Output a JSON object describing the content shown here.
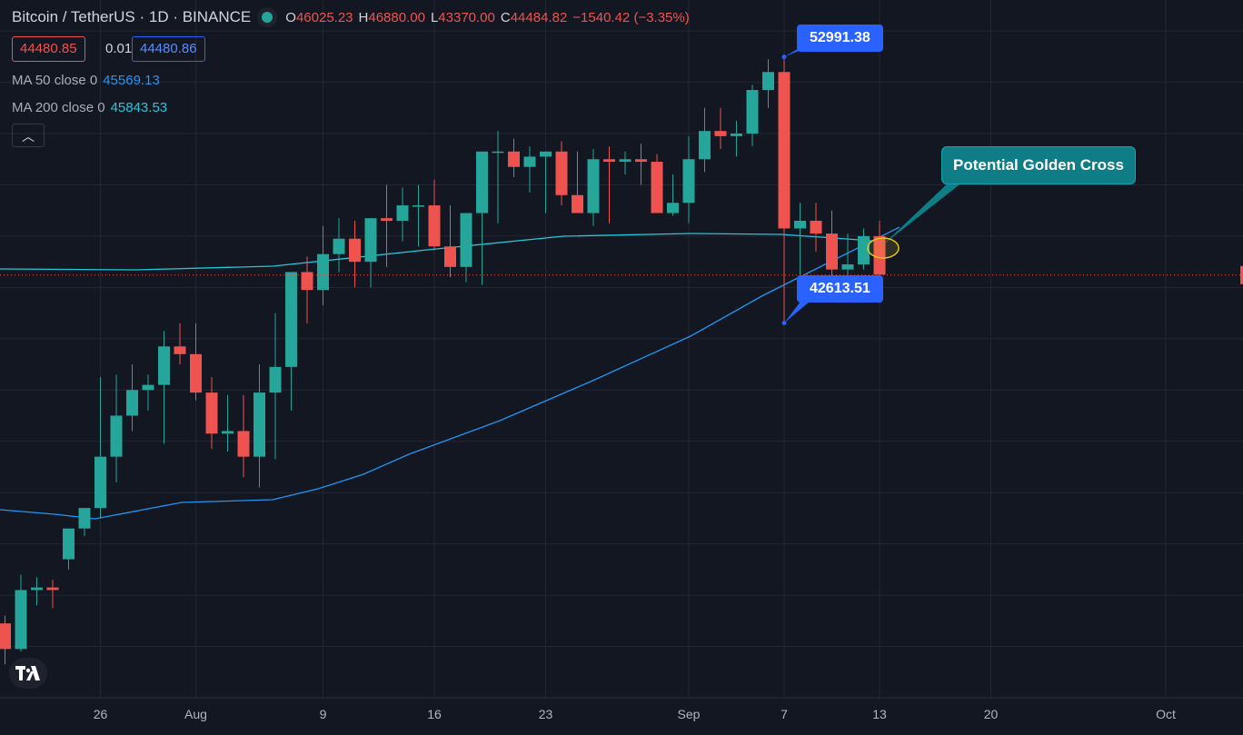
{
  "header": {
    "symbol": "Bitcoin / TetherUS · 1D · BINANCE",
    "ohlc": {
      "O": "46025.23",
      "H": "46880.00",
      "L": "43370.00",
      "C": "44484.82",
      "change": "−1540.42 (−3.35%)"
    }
  },
  "quote": {
    "bid": "44480.85",
    "spread": "0.01",
    "ask": "44480.86"
  },
  "indicators": [
    {
      "label": "MA 50 close 0",
      "value": "45569.13",
      "color": "#2196f3"
    },
    {
      "label": "MA 200 close 0",
      "value": "45843.53",
      "color": "#26c6da"
    }
  ],
  "colors": {
    "up": "#26a69a",
    "down": "#ef5350",
    "background": "#131722",
    "grid": "#242733",
    "callout": "#2962ff",
    "annotation": "#0f7d86"
  },
  "annotations": {
    "high_label": "52991.38",
    "low_label": "42613.51",
    "note": "Potential Golden Cross"
  },
  "chart_data": {
    "type": "candlestick",
    "x_tick_labels": [
      "26",
      "Aug",
      "9",
      "16",
      "23",
      "Sep",
      "7",
      "13",
      "20",
      "Oct"
    ],
    "x_tick_dates": [
      "2021-07-26",
      "2021-08-01",
      "2021-08-09",
      "2021-08-16",
      "2021-08-23",
      "2021-09-01",
      "2021-09-07",
      "2021-09-13",
      "2021-09-20",
      "2021-10-01"
    ],
    "ylim": [
      28000,
      54500
    ],
    "dates": [
      "2021-07-20",
      "2021-07-21",
      "2021-07-22",
      "2021-07-23",
      "2021-07-24",
      "2021-07-25",
      "2021-07-26",
      "2021-07-27",
      "2021-07-28",
      "2021-07-29",
      "2021-07-30",
      "2021-07-31",
      "2021-08-01",
      "2021-08-02",
      "2021-08-03",
      "2021-08-04",
      "2021-08-05",
      "2021-08-06",
      "2021-08-07",
      "2021-08-08",
      "2021-08-09",
      "2021-08-10",
      "2021-08-11",
      "2021-08-12",
      "2021-08-13",
      "2021-08-14",
      "2021-08-15",
      "2021-08-16",
      "2021-08-17",
      "2021-08-18",
      "2021-08-19",
      "2021-08-20",
      "2021-08-21",
      "2021-08-22",
      "2021-08-23",
      "2021-08-24",
      "2021-08-25",
      "2021-08-26",
      "2021-08-27",
      "2021-08-28",
      "2021-08-29",
      "2021-08-30",
      "2021-08-31",
      "2021-09-01",
      "2021-09-02",
      "2021-09-03",
      "2021-09-04",
      "2021-09-05",
      "2021-09-06",
      "2021-09-07",
      "2021-09-08",
      "2021-09-09",
      "2021-09-10",
      "2021-09-11",
      "2021-09-12",
      "2021-09-13"
    ],
    "open": [
      30900,
      29900,
      32200,
      32300,
      33400,
      34600,
      35400,
      37400,
      39000,
      40000,
      40200,
      41700,
      41400,
      39900,
      38300,
      38400,
      37400,
      39900,
      40900,
      44600,
      43900,
      45300,
      45900,
      45000,
      46700,
      46600,
      47200,
      47200,
      45600,
      44800,
      46900,
      49300,
      49300,
      48700,
      49100,
      49300,
      47600,
      46900,
      49000,
      48900,
      49000,
      48900,
      46900,
      47300,
      49000,
      50100,
      49900,
      50000,
      51700,
      52400,
      46300,
      46600,
      46100,
      44700,
      44900,
      46000
    ],
    "high": [
      31200,
      32800,
      32700,
      32600,
      34500,
      35200,
      40500,
      40600,
      41000,
      40600,
      42300,
      42600,
      42600,
      40500,
      39800,
      39800,
      41000,
      43000,
      44600,
      45200,
      46400,
      46700,
      46600,
      46500,
      48000,
      47900,
      48000,
      48200,
      47200,
      46900,
      49100,
      50100,
      49800,
      49500,
      49100,
      49700,
      49300,
      49400,
      49500,
      49300,
      49600,
      49200,
      48400,
      49900,
      51000,
      51000,
      50500,
      51900,
      52900,
      53000,
      47300,
      47300,
      47000,
      46100,
      46300,
      46600
    ],
    "low": [
      29300,
      29800,
      31600,
      31500,
      33000,
      34300,
      35000,
      36400,
      38400,
      39200,
      37900,
      41000,
      39600,
      37700,
      37600,
      36600,
      36200,
      37300,
      39200,
      42600,
      43300,
      44600,
      44000,
      44000,
      44800,
      45800,
      45600,
      45500,
      44400,
      44200,
      44100,
      46500,
      48300,
      47700,
      46900,
      47200,
      47000,
      46400,
      46500,
      48400,
      48000,
      46900,
      46800,
      46500,
      48500,
      49400,
      49100,
      49500,
      51000,
      42600,
      44400,
      45400,
      44200,
      44400,
      44700,
      43400
    ],
    "close": [
      29900,
      32200,
      32300,
      32200,
      34600,
      35400,
      37400,
      39000,
      40000,
      40200,
      41700,
      41400,
      39900,
      38300,
      38400,
      37400,
      39900,
      40900,
      44600,
      43900,
      45300,
      45900,
      45000,
      46700,
      46600,
      47200,
      47200,
      45600,
      44800,
      46900,
      49300,
      49300,
      48700,
      49100,
      49300,
      47600,
      46900,
      49000,
      48900,
      49000,
      48900,
      46900,
      47300,
      49000,
      50100,
      49900,
      50000,
      51700,
      52400,
      46300,
      46600,
      46100,
      44700,
      44900,
      46000,
      44500
    ],
    "series": [
      {
        "name": "MA 50 close 0",
        "values": [
          null,
          null,
          null,
          null,
          null,
          null,
          null,
          null,
          null,
          null,
          null,
          null,
          null,
          null,
          null,
          null,
          null,
          null,
          null,
          null,
          null,
          null,
          null,
          null,
          null,
          null,
          null,
          null,
          null,
          null,
          null,
          null,
          null,
          null,
          null,
          null,
          null,
          null,
          null,
          null,
          null,
          null,
          null,
          null,
          null,
          null,
          null,
          null,
          null,
          null,
          null,
          null,
          null,
          null,
          null,
          45569.13
        ]
      },
      {
        "name": "MA 200 close 0",
        "values": [
          null,
          null,
          null,
          null,
          null,
          null,
          null,
          null,
          null,
          null,
          null,
          null,
          null,
          null,
          null,
          null,
          null,
          null,
          null,
          null,
          null,
          null,
          null,
          null,
          null,
          null,
          null,
          null,
          null,
          null,
          null,
          null,
          null,
          null,
          null,
          null,
          null,
          null,
          null,
          null,
          null,
          null,
          null,
          null,
          null,
          null,
          null,
          null,
          null,
          null,
          null,
          null,
          null,
          null,
          null,
          45843.53
        ]
      }
    ],
    "last_price": 44480.85
  }
}
